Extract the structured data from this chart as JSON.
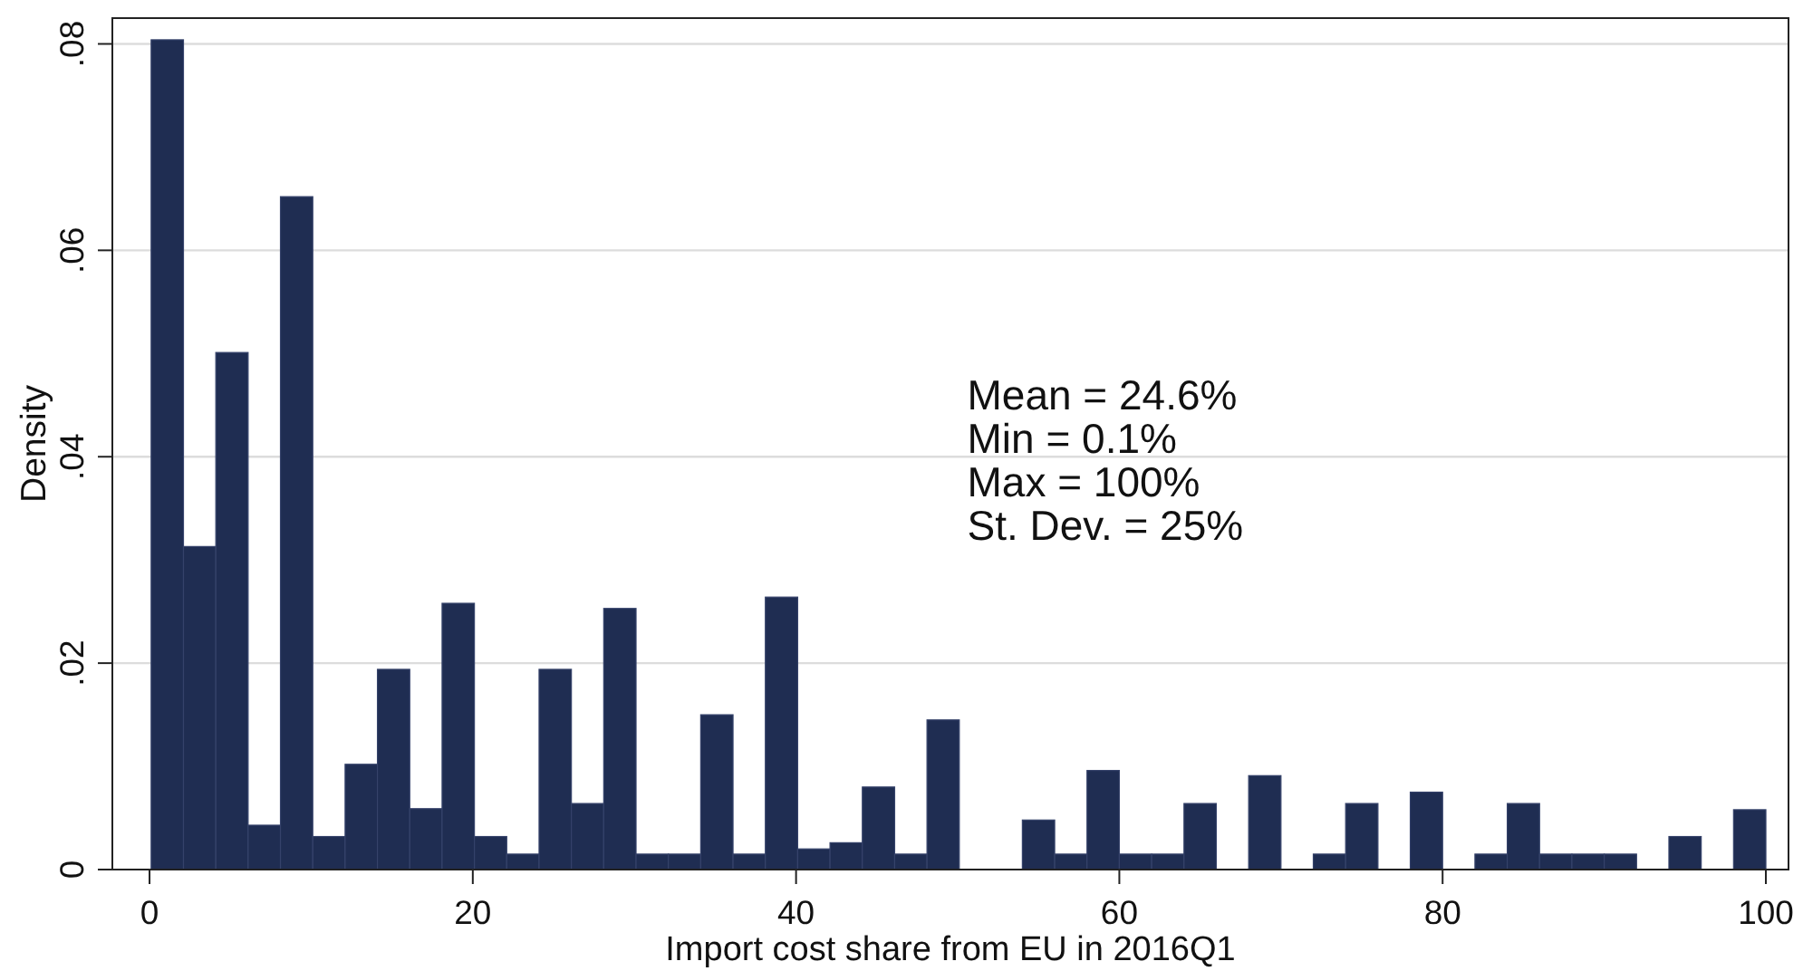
{
  "chart_data": {
    "type": "histogram",
    "xlabel": "Import cost share from EU in 2016Q1",
    "ylabel": "Density",
    "bins": [
      0.1,
      2.1,
      4.1,
      6.1,
      8.1,
      10.1,
      12.1,
      14.1,
      16.1,
      18.1,
      20.1,
      22.1,
      24.1,
      26.1,
      28.1,
      30.1,
      32.1,
      34.1,
      36.1,
      38.1,
      40.1,
      42.1,
      44.1,
      46.1,
      48.1,
      50.1,
      54.0,
      56.0,
      58.0,
      60.0,
      62.0,
      64.0,
      66.0,
      68.0,
      70.0,
      72.0,
      74.0,
      76.0,
      78.0,
      80.0,
      82.0,
      84.0,
      86.0,
      88.0,
      90.0,
      92.0,
      94.0,
      96.0,
      98.0,
      100
    ],
    "values": [
      0.0804,
      0.0313,
      0.0501,
      0.0043,
      0.0652,
      0.0032,
      0.0102,
      0.0194,
      0.0059,
      0.0258,
      0.0032,
      0.0015,
      0.0194,
      0.0064,
      0.0253,
      0.0015,
      0.0015,
      0.015,
      0.0015,
      0.0264,
      0.002,
      0.0026,
      0.008,
      0.0015,
      0.0145,
      0,
      0.0048,
      0.0015,
      0.0096,
      0.0015,
      0.0015,
      0.0064,
      0,
      0.0091,
      0,
      0.0015,
      0.0064,
      0,
      0.0075,
      0,
      0.0015,
      0.0064,
      0.0015,
      0.0015,
      0.0015,
      0,
      0.0032,
      0,
      0.0058
    ],
    "color": "#1f2d52",
    "xlim": [
      -2.3,
      101.4
    ],
    "ylim": [
      0,
      0.0825
    ],
    "xticks": [
      0,
      20,
      40,
      60,
      80,
      100
    ],
    "yticks": [
      0,
      {
        "value": 0.02,
        "label": ".02"
      },
      {
        "value": 0.04,
        "label": ".04"
      },
      {
        "value": 0.06,
        "label": ".06"
      },
      {
        "value": 0.08,
        "label": ".08"
      }
    ],
    "grid": "y",
    "annotations": [
      "Mean = 24.6%",
      "Min = 0.1%",
      "Max = 100%",
      "St. Dev. = 25%"
    ]
  }
}
